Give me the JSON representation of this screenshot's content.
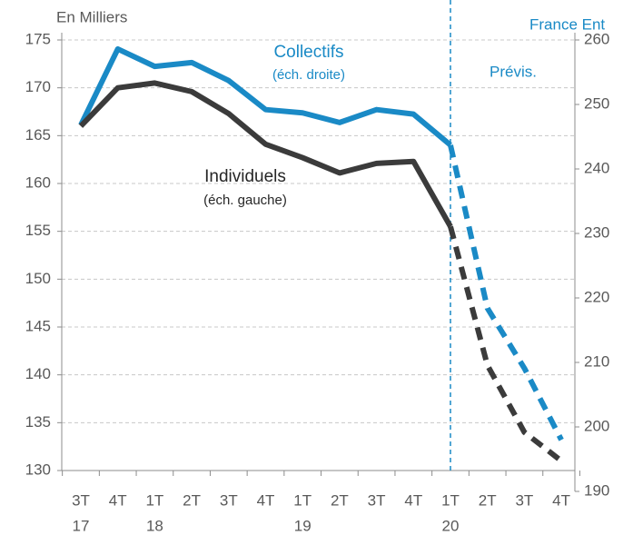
{
  "chart_data": {
    "type": "line",
    "title": "France Ent",
    "y_axis_label": "En Milliers",
    "categories": [
      "3T",
      "4T",
      "1T",
      "2T",
      "3T",
      "4T",
      "1T",
      "2T",
      "3T",
      "4T",
      "1T",
      "2T",
      "3T",
      "4T"
    ],
    "years": [
      "17",
      null,
      "18",
      null,
      null,
      null,
      "19",
      null,
      null,
      null,
      "20",
      null,
      null,
      null
    ],
    "forecast_from": 10,
    "forecast_label": "Prévis.",
    "series": [
      {
        "name": "Collectifs",
        "scale_note": "(éch. droite)",
        "color": "#1a8ac6",
        "axis": "y2",
        "values": [
          246.8,
          258.6,
          255.9,
          256.5,
          253.7,
          249.2,
          248.7,
          247.2,
          249.2,
          248.5,
          243.7,
          218.4,
          209.1,
          198
        ]
      },
      {
        "name": "Individuels",
        "scale_note": "(éch. gauche)",
        "color": "#3b3b3b",
        "values": [
          166,
          170,
          170.5,
          169.6,
          167.3,
          164.1,
          162.7,
          161.1,
          162.1,
          162.3,
          155.5,
          141,
          134,
          131
        ]
      }
    ],
    "ylim": [
      130,
      175
    ],
    "yticks": [
      130,
      135,
      140,
      145,
      150,
      155,
      160,
      165,
      170,
      175
    ],
    "y2lim": [
      190,
      260
    ],
    "y2ticks": [
      190,
      200,
      210,
      220,
      230,
      240,
      250,
      260
    ],
    "grid": true
  }
}
